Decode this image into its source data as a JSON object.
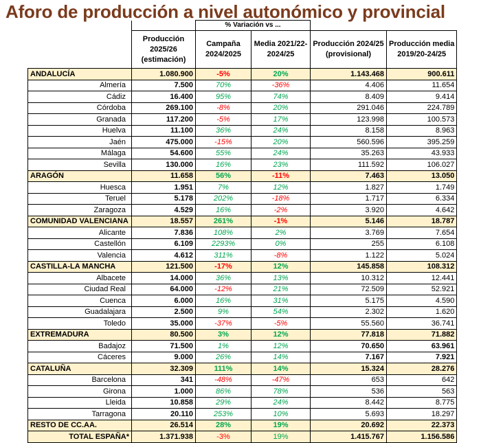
{
  "title": "Aforo de producción a nivel autonómico y provincial",
  "headers": {
    "group": "% Variación vs ...",
    "prod": [
      "Producción",
      "2025/26",
      "(estimación)"
    ],
    "camp": [
      "Campaña",
      "2024/2025"
    ],
    "media": [
      "Media 2021/22-",
      "2024/25"
    ],
    "prov": [
      "Producción 2024/25",
      "(provisional)"
    ],
    "pm": [
      "Producción media",
      "2019/20-24/25"
    ]
  },
  "colors": {
    "title": "#7a3b1d",
    "region_bg": "#fff2cc",
    "positive": "#00a650",
    "negative": "#ff0000"
  },
  "rows": [
    {
      "type": "region",
      "name": "ANDALUCÍA",
      "prod": "1.080.900",
      "camp": "-5%",
      "media": "20%",
      "p2425": "1.143.468",
      "pm": "900.611"
    },
    {
      "type": "prov",
      "name": "Almería",
      "prod": "7.500",
      "camp": "70%",
      "media": "-36%",
      "p2425": "4.406",
      "pm": "11.654"
    },
    {
      "type": "prov",
      "name": "Cádiz",
      "prod": "16.400",
      "camp": "95%",
      "media": "74%",
      "p2425": "8.409",
      "pm": "9.414"
    },
    {
      "type": "prov",
      "name": "Córdoba",
      "prod": "269.100",
      "camp": "-8%",
      "media": "20%",
      "p2425": "291.046",
      "pm": "224.789"
    },
    {
      "type": "prov",
      "name": "Granada",
      "prod": "117.200",
      "camp": "-5%",
      "media": "17%",
      "p2425": "123.998",
      "pm": "100.573"
    },
    {
      "type": "prov",
      "name": "Huelva",
      "prod": "11.100",
      "camp": "36%",
      "media": "24%",
      "p2425": "8.158",
      "pm": "8.963"
    },
    {
      "type": "prov",
      "name": "Jaén",
      "prod": "475.000",
      "camp": "-15%",
      "media": "20%",
      "p2425": "560.596",
      "pm": "395.259"
    },
    {
      "type": "prov",
      "name": "Málaga",
      "prod": "54.600",
      "camp": "55%",
      "media": "24%",
      "p2425": "35.263",
      "pm": "43.933"
    },
    {
      "type": "prov",
      "name": "Sevilla",
      "prod": "130.000",
      "camp": "16%",
      "media": "23%",
      "p2425": "111.592",
      "pm": "106.027"
    },
    {
      "type": "region",
      "name": "ARAGÓN",
      "prod": "11.658",
      "camp": "56%",
      "media": "-11%",
      "p2425": "7.463",
      "pm": "13.050"
    },
    {
      "type": "prov",
      "name": "Huesca",
      "prod": "1.951",
      "camp": "7%",
      "media": "12%",
      "p2425": "1.827",
      "pm": "1.749"
    },
    {
      "type": "prov",
      "name": "Teruel",
      "prod": "5.178",
      "camp": "202%",
      "media": "-18%",
      "p2425": "1.717",
      "pm": "6.334"
    },
    {
      "type": "prov",
      "name": "Zaragoza",
      "prod": "4.529",
      "camp": "16%",
      "media": "-2%",
      "p2425": "3.920",
      "pm": "4.642"
    },
    {
      "type": "region",
      "name": "COMUNIDAD VALENCIANA",
      "prod": "18.557",
      "camp": "261%",
      "media": "-1%",
      "p2425": "5.146",
      "pm": "18.787"
    },
    {
      "type": "prov",
      "name": "Alicante",
      "prod": "7.836",
      "camp": "108%",
      "media": "2%",
      "p2425": "3.769",
      "pm": "7.654"
    },
    {
      "type": "prov",
      "name": "Castellón",
      "prod": "6.109",
      "camp": "2293%",
      "media": "0%",
      "p2425": "255",
      "pm": "6.108"
    },
    {
      "type": "prov",
      "name": "Valencia",
      "prod": "4.612",
      "camp": "311%",
      "media": "-8%",
      "p2425": "1.122",
      "pm": "5.024"
    },
    {
      "type": "region",
      "name": "CASTILLA-LA MANCHA",
      "prod": "121.500",
      "camp": "-17%",
      "media": "12%",
      "p2425": "145.858",
      "pm": "108.312"
    },
    {
      "type": "prov",
      "name": "Albacete",
      "prod": "14.000",
      "camp": "36%",
      "media": "13%",
      "p2425": "10.312",
      "pm": "12.441"
    },
    {
      "type": "prov",
      "name": "Ciudad Real",
      "prod": "64.000",
      "camp": "-12%",
      "media": "21%",
      "p2425": "72.509",
      "pm": "52.921"
    },
    {
      "type": "prov",
      "name": "Cuenca",
      "prod": "6.000",
      "camp": "16%",
      "media": "31%",
      "p2425": "5.175",
      "pm": "4.590"
    },
    {
      "type": "prov",
      "name": "Guadalajara",
      "prod": "2.500",
      "camp": "9%",
      "media": "54%",
      "p2425": "2.302",
      "pm": "1.620"
    },
    {
      "type": "prov",
      "name": "Toledo",
      "prod": "35.000",
      "camp": "-37%",
      "media": "-5%",
      "p2425": "55.560",
      "pm": "36.741"
    },
    {
      "type": "region",
      "name": "EXTREMADURA",
      "prod": "80.500",
      "camp": "3%",
      "media": "12%",
      "p2425": "77.818",
      "pm": "71.882"
    },
    {
      "type": "prov",
      "name": "Badajoz",
      "prod": "71.500",
      "camp": "1%",
      "media": "12%",
      "p2425": "70.650",
      "pm": "63.961",
      "bold": true
    },
    {
      "type": "prov",
      "name": "Cáceres",
      "prod": "9.000",
      "camp": "26%",
      "media": "14%",
      "p2425": "7.167",
      "pm": "7.921",
      "bold": true
    },
    {
      "type": "region",
      "name": "CATALUÑA",
      "prod": "32.309",
      "camp": "111%",
      "media": "14%",
      "p2425": "15.324",
      "pm": "28.276"
    },
    {
      "type": "prov",
      "name": "Barcelona",
      "prod": "341",
      "camp": "-48%",
      "media": "-47%",
      "p2425": "653",
      "pm": "642"
    },
    {
      "type": "prov",
      "name": "Girona",
      "prod": "1.000",
      "camp": "86%",
      "media": "78%",
      "p2425": "536",
      "pm": "563"
    },
    {
      "type": "prov",
      "name": "Lleida",
      "prod": "10.858",
      "camp": "29%",
      "media": "24%",
      "p2425": "8.442",
      "pm": "8.775"
    },
    {
      "type": "prov",
      "name": "Tarragona",
      "prod": "20.110",
      "camp": "253%",
      "media": "10%",
      "p2425": "5.693",
      "pm": "18.297"
    },
    {
      "type": "region",
      "name": "RESTO DE CC.AA.",
      "prod": "26.514",
      "camp": "28%",
      "media": "19%",
      "p2425": "20.692",
      "pm": "22.373"
    },
    {
      "type": "total",
      "name": "TOTAL ESPAÑA*",
      "prod": "1.371.938",
      "camp": "-3%",
      "media": "19%",
      "p2425": "1.415.767",
      "pm": "1.156.586"
    }
  ]
}
